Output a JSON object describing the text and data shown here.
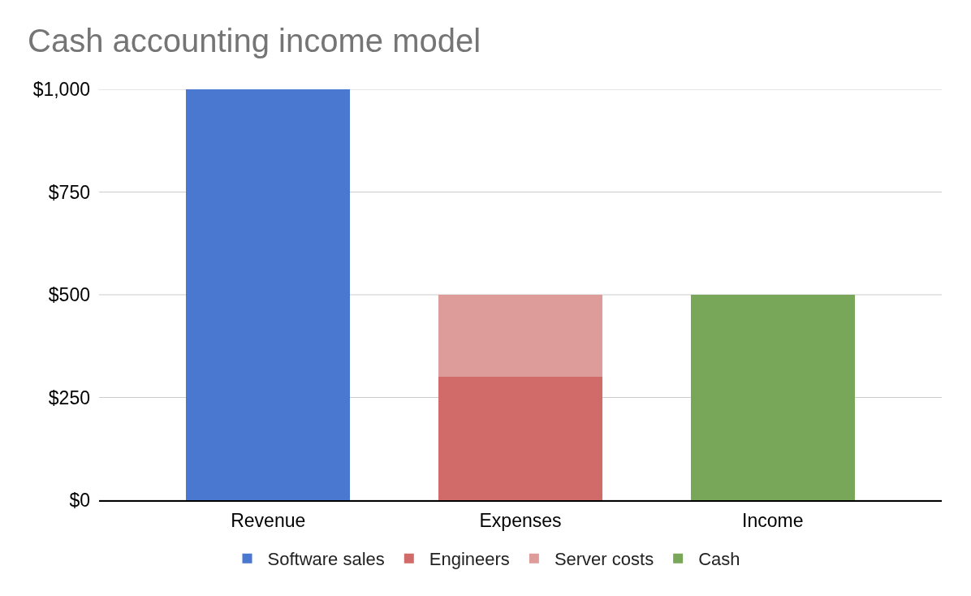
{
  "chart_data": {
    "type": "bar",
    "title": "Cash accounting income model",
    "categories": [
      "Revenue",
      "Expenses",
      "Income"
    ],
    "stacked": true,
    "series": [
      {
        "name": "Software sales",
        "color": "#4a77d0",
        "values": [
          1000,
          null,
          null
        ]
      },
      {
        "name": "Engineers",
        "color": "#d06b69",
        "values": [
          null,
          300,
          null
        ]
      },
      {
        "name": "Server costs",
        "color": "#dd9c9a",
        "values": [
          null,
          200,
          null
        ]
      },
      {
        "name": "Cash",
        "color": "#78a75a",
        "values": [
          null,
          null,
          500
        ]
      }
    ],
    "ylim": [
      0,
      1000
    ],
    "yticks": [
      {
        "value": 0,
        "label": "$0"
      },
      {
        "value": 250,
        "label": "$250"
      },
      {
        "value": 500,
        "label": "$500"
      },
      {
        "value": 750,
        "label": "$750"
      },
      {
        "value": 1000,
        "label": "$1,000"
      }
    ],
    "grid": "y",
    "legend": "bottom"
  }
}
